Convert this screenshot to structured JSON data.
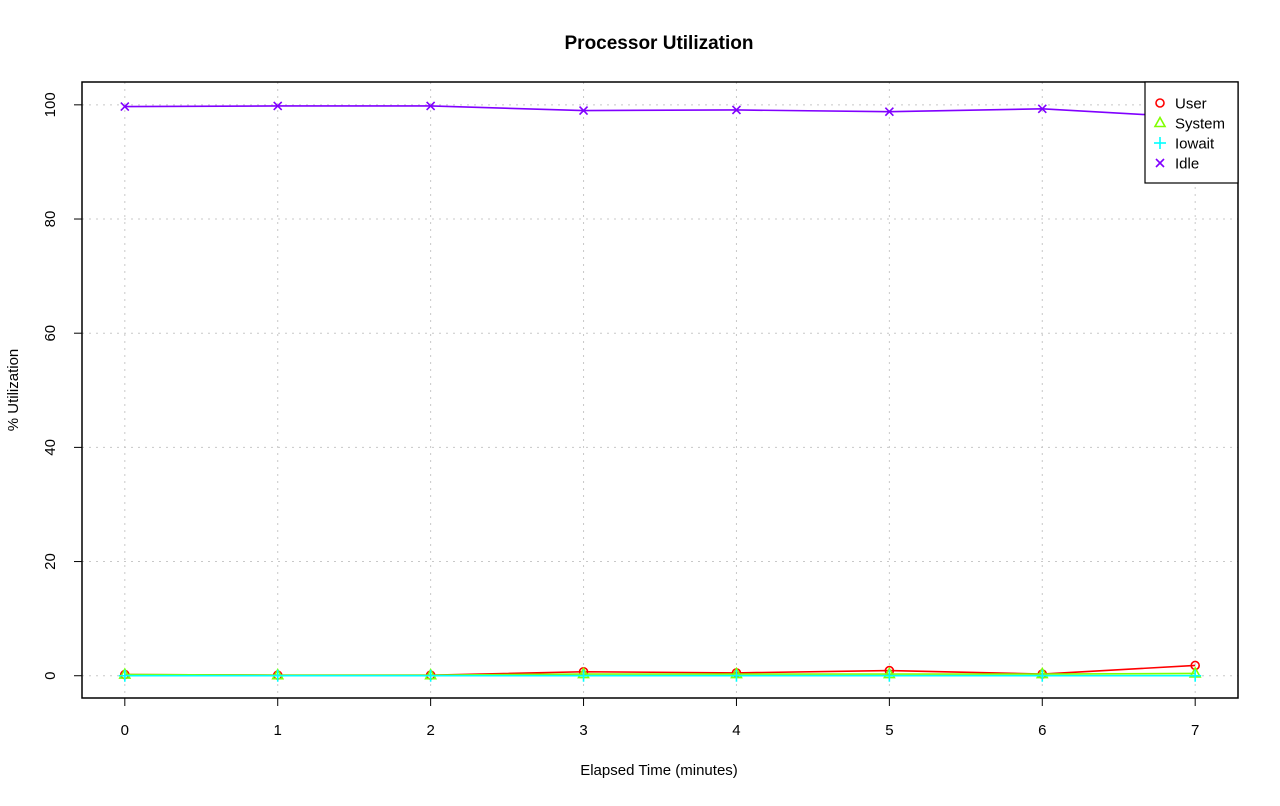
{
  "chart_data": {
    "type": "line",
    "title": "Processor Utilization",
    "xlabel": "Elapsed Time (minutes)",
    "ylabel": "% Utilization",
    "x": [
      0,
      1,
      2,
      3,
      4,
      5,
      6,
      7
    ],
    "xlim": [
      -0.28,
      7.28
    ],
    "ylim": [
      -3.9,
      104
    ],
    "x_ticks": [
      0,
      1,
      2,
      3,
      4,
      5,
      6,
      7
    ],
    "y_ticks": [
      0,
      20,
      40,
      60,
      80,
      100
    ],
    "grid": true,
    "legend_position": "top-right",
    "series": [
      {
        "name": "User",
        "color": "#ff0000",
        "marker": "circle",
        "values": [
          0.2,
          0.1,
          0.1,
          0.7,
          0.5,
          0.9,
          0.3,
          1.8
        ]
      },
      {
        "name": "System",
        "color": "#80ff00",
        "marker": "triangle",
        "values": [
          0.2,
          0.1,
          0.1,
          0.3,
          0.3,
          0.3,
          0.3,
          0.4
        ]
      },
      {
        "name": "Iowait",
        "color": "#00ffff",
        "marker": "plus",
        "values": [
          0.0,
          0.0,
          0.0,
          0.0,
          0.0,
          0.0,
          0.0,
          0.0
        ]
      },
      {
        "name": "Idle",
        "color": "#8000ff",
        "marker": "cross",
        "values": [
          99.7,
          99.8,
          99.8,
          99.0,
          99.1,
          98.8,
          99.3,
          97.8
        ]
      }
    ]
  }
}
